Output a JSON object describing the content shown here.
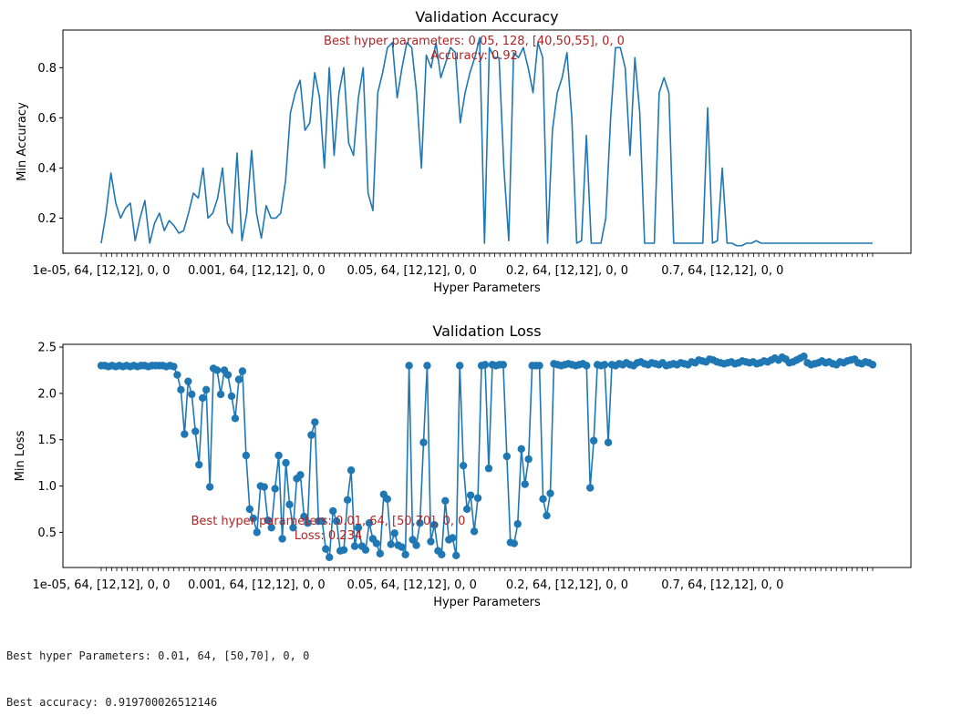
{
  "chart_data": [
    {
      "type": "line",
      "title": "Validation Accuracy",
      "xlabel": "Hyper Parameters",
      "ylabel": "Min Accuracy",
      "ylim": [
        0.06,
        0.95
      ],
      "yticks": [
        "0.2",
        "0.4",
        "0.6",
        "0.8"
      ],
      "ytick_values": [
        0.2,
        0.4,
        0.6,
        0.8
      ],
      "xtick_labels": [
        "1e-05, 64, [12,12], 0, 0",
        "0.001, 64, [12,12], 0, 0",
        "0.05, 64, [12,12], 0, 0",
        "0.2, 64, [12,12], 0, 0",
        "0.7, 64, [12,12], 0, 0"
      ],
      "xtick_label_index": [
        0,
        30,
        60,
        90,
        120
      ],
      "minor_tick_count": 150,
      "markers": false,
      "color": "#1f77b4",
      "annotation": {
        "lines": [
          "Best hyper parameters: 0.05, 128, [40,50,55], 0, 0",
          "Accuracy: 0.92"
        ],
        "color": "#b22222"
      },
      "values": [
        0.1,
        0.22,
        0.38,
        0.26,
        0.2,
        0.24,
        0.26,
        0.11,
        0.2,
        0.27,
        0.1,
        0.18,
        0.22,
        0.15,
        0.19,
        0.17,
        0.14,
        0.15,
        0.22,
        0.3,
        0.28,
        0.4,
        0.2,
        0.22,
        0.28,
        0.4,
        0.18,
        0.14,
        0.46,
        0.11,
        0.22,
        0.47,
        0.22,
        0.12,
        0.25,
        0.2,
        0.2,
        0.22,
        0.35,
        0.62,
        0.7,
        0.75,
        0.55,
        0.58,
        0.78,
        0.68,
        0.4,
        0.8,
        0.45,
        0.7,
        0.8,
        0.5,
        0.45,
        0.68,
        0.8,
        0.3,
        0.23,
        0.7,
        0.78,
        0.88,
        0.9,
        0.68,
        0.8,
        0.9,
        0.88,
        0.7,
        0.4,
        0.85,
        0.8,
        0.9,
        0.76,
        0.82,
        0.88,
        0.86,
        0.58,
        0.7,
        0.78,
        0.84,
        0.92,
        0.1,
        0.88,
        0.84,
        0.84,
        0.4,
        0.11,
        0.86,
        0.84,
        0.88,
        0.8,
        0.7,
        0.9,
        0.84,
        0.1,
        0.55,
        0.7,
        0.76,
        0.86,
        0.6,
        0.1,
        0.11,
        0.53,
        0.1,
        0.1,
        0.1,
        0.2,
        0.6,
        0.88,
        0.88,
        0.8,
        0.45,
        0.84,
        0.62,
        0.1,
        0.1,
        0.1,
        0.7,
        0.76,
        0.7,
        0.1,
        0.1,
        0.1,
        0.1,
        0.1,
        0.1,
        0.1,
        0.64,
        0.1,
        0.11,
        0.4,
        0.1,
        0.1,
        0.09,
        0.09,
        0.1,
        0.1,
        0.11,
        0.1,
        0.1,
        0.1,
        0.1,
        0.1,
        0.1,
        0.1,
        0.1,
        0.1,
        0.1,
        0.1,
        0.1,
        0.1,
        0.1,
        0.1,
        0.1,
        0.1,
        0.1,
        0.1,
        0.1,
        0.1,
        0.1,
        0.1,
        0.1
      ]
    },
    {
      "type": "line",
      "title": "Validation Loss",
      "xlabel": "Hyper Parameters",
      "ylabel": "Min Loss",
      "ylim": [
        0.12,
        2.53
      ],
      "yticks": [
        "0.5",
        "1.0",
        "1.5",
        "2.0",
        "2.5"
      ],
      "ytick_values": [
        0.5,
        1.0,
        1.5,
        2.0,
        2.5
      ],
      "xtick_labels": [
        "1e-05, 64, [12,12], 0, 0",
        "0.001, 64, [12,12], 0, 0",
        "0.05, 64, [12,12], 0, 0",
        "0.2, 64, [12,12], 0, 0",
        "0.7, 64, [12,12], 0, 0"
      ],
      "xtick_label_index": [
        0,
        30,
        60,
        90,
        120
      ],
      "minor_tick_count": 150,
      "markers": true,
      "color": "#1f77b4",
      "annotation": {
        "lines": [
          "Best hyper parameters: 0.01, 64, [50,70], 0, 0",
          "Loss: 0.234"
        ],
        "color": "#b22222"
      },
      "values": [
        2.3,
        2.3,
        2.29,
        2.3,
        2.29,
        2.3,
        2.29,
        2.3,
        2.29,
        2.3,
        2.29,
        2.3,
        2.3,
        2.29,
        2.3,
        2.3,
        2.3,
        2.3,
        2.29,
        2.3,
        2.29,
        2.2,
        2.04,
        1.56,
        2.13,
        1.99,
        1.59,
        1.23,
        1.95,
        2.04,
        0.99,
        2.27,
        2.25,
        1.99,
        2.25,
        2.2,
        1.97,
        1.73,
        2.15,
        2.24,
        1.33,
        0.75,
        0.65,
        0.5,
        1.0,
        0.99,
        0.63,
        0.55,
        0.97,
        1.33,
        0.43,
        1.25,
        0.8,
        0.55,
        1.08,
        1.12,
        0.67,
        0.6,
        1.55,
        1.69,
        0.62,
        0.62,
        0.32,
        0.23,
        0.73,
        0.62,
        0.3,
        0.31,
        0.85,
        1.17,
        0.35,
        0.55,
        0.35,
        0.31,
        0.6,
        0.43,
        0.38,
        0.27,
        0.91,
        0.86,
        0.37,
        0.49,
        0.36,
        0.34,
        0.26,
        2.3,
        0.42,
        0.36,
        0.6,
        1.47,
        2.3,
        0.4,
        0.58,
        0.3,
        0.26,
        0.84,
        0.42,
        0.44,
        0.25,
        2.3,
        1.22,
        0.75,
        0.9,
        0.51,
        0.87,
        2.3,
        2.31,
        1.19,
        2.31,
        2.3,
        2.31,
        2.31,
        1.32,
        0.39,
        0.38,
        0.59,
        1.4,
        1.02,
        1.29,
        2.3,
        2.3,
        2.3,
        0.86,
        0.68,
        0.92,
        2.32,
        2.31,
        2.3,
        2.31,
        2.32,
        2.31,
        2.3,
        2.31,
        2.32,
        2.3,
        0.98,
        1.49,
        2.31,
        2.3,
        2.31,
        1.47,
        2.31,
        2.3,
        2.32,
        2.31,
        2.33,
        2.31,
        2.3,
        2.33,
        2.34,
        2.32,
        2.31,
        2.33,
        2.32,
        2.31,
        2.33,
        2.3,
        2.31,
        2.32,
        2.31,
        2.33,
        2.32,
        2.31,
        2.34,
        2.33,
        2.36,
        2.35,
        2.34,
        2.37,
        2.36,
        2.34,
        2.33,
        2.32,
        2.33,
        2.34,
        2.32,
        2.33,
        2.35,
        2.34,
        2.33,
        2.34,
        2.32,
        2.33,
        2.35,
        2.34,
        2.36,
        2.38,
        2.36,
        2.39,
        2.37,
        2.33,
        2.34,
        2.36,
        2.38,
        2.4,
        2.33,
        2.31,
        2.32,
        2.33,
        2.35,
        2.33,
        2.34,
        2.32,
        2.31,
        2.34,
        2.33,
        2.35,
        2.36,
        2.37,
        2.33,
        2.32,
        2.34,
        2.33,
        2.31
      ]
    }
  ],
  "console": {
    "line1": "Best hyper Parameters: 0.01, 64, [50,70], 0, 0",
    "line2": "Best accuracy: 0.919700026512146"
  }
}
